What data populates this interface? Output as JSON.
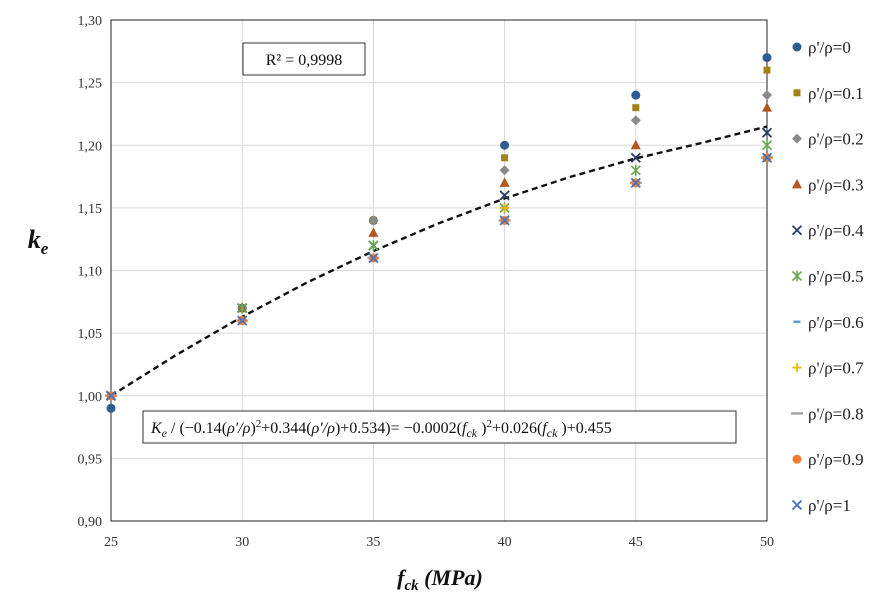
{
  "chart_data": {
    "type": "scatter",
    "xlabel": {
      "main": "f",
      "sub": "ck",
      "unit": " (MPa)"
    },
    "ylabel": {
      "main": "k",
      "sub": "e"
    },
    "xlim": [
      25,
      50
    ],
    "ylim": [
      0.9,
      1.3
    ],
    "xticks": [
      "25",
      "30",
      "35",
      "40",
      "45",
      "50"
    ],
    "yticks": [
      "0,90",
      "0,95",
      "1,00",
      "1,05",
      "1,10",
      "1,15",
      "1,20",
      "1,25",
      "1,30"
    ],
    "grid": true,
    "legend": "right",
    "x": [
      25,
      30,
      35,
      40,
      45,
      50
    ],
    "series": [
      {
        "name": "ρ'/ρ=0",
        "marker": "circle",
        "color": "#2e5d93",
        "values": [
          0.99,
          1.07,
          1.14,
          1.2,
          1.24,
          1.27
        ]
      },
      {
        "name": "ρ'/ρ=0.1",
        "marker": "square",
        "color": "#a08418",
        "values": [
          1.0,
          1.07,
          1.14,
          1.19,
          1.23,
          1.26
        ]
      },
      {
        "name": "ρ'/ρ=0.2",
        "marker": "diamond",
        "color": "#8a8a8a",
        "values": [
          1.0,
          1.07,
          1.14,
          1.18,
          1.22,
          1.24
        ]
      },
      {
        "name": "ρ'/ρ=0.3",
        "marker": "triangle",
        "color": "#b5561f",
        "values": [
          1.0,
          1.07,
          1.13,
          1.17,
          1.2,
          1.23
        ]
      },
      {
        "name": "ρ'/ρ=0.4",
        "marker": "x",
        "color": "#1f3d6b",
        "values": [
          1.0,
          1.07,
          1.12,
          1.16,
          1.19,
          1.21
        ]
      },
      {
        "name": "ρ'/ρ=0.5",
        "marker": "star",
        "color": "#6aa84f",
        "values": [
          1.0,
          1.07,
          1.12,
          1.15,
          1.18,
          1.2
        ]
      },
      {
        "name": "ρ'/ρ=0.6",
        "marker": "dash",
        "color": "#5b9bd5",
        "values": [
          1.0,
          1.06,
          1.11,
          1.15,
          1.17,
          1.19
        ]
      },
      {
        "name": "ρ'/ρ=0.7",
        "marker": "plus",
        "color": "#f1b400",
        "values": [
          1.0,
          1.06,
          1.11,
          1.15,
          1.17,
          1.19
        ]
      },
      {
        "name": "ρ'/ρ=0.8",
        "marker": "bar",
        "color": "#a5a5a5",
        "values": [
          1.0,
          1.06,
          1.11,
          1.14,
          1.17,
          1.19
        ]
      },
      {
        "name": "ρ'/ρ=0.9",
        "marker": "circle",
        "color": "#ed7d31",
        "values": [
          1.0,
          1.06,
          1.11,
          1.14,
          1.17,
          1.19
        ]
      },
      {
        "name": "ρ'/ρ=1",
        "marker": "x",
        "color": "#4472c4",
        "values": [
          1.0,
          1.06,
          1.11,
          1.14,
          1.17,
          1.19
        ]
      }
    ],
    "trendline": {
      "style": "dashed",
      "color": "#111111",
      "x": [
        25,
        27.5,
        30,
        32.5,
        35,
        37.5,
        40,
        42.5,
        45,
        47.5,
        50
      ],
      "values": [
        1.0,
        1.0328,
        1.063,
        1.0907,
        1.1155,
        1.1378,
        1.1575,
        1.1747,
        1.1895,
        1.2018,
        1.215
      ]
    },
    "annotations": {
      "r2": "R² = 0,9998",
      "equation_parts": [
        {
          "t": "K",
          "i": true
        },
        {
          "t": "e",
          "sub": true,
          "i": true
        },
        {
          "t": " / (−0.14("
        },
        {
          "t": "ρ′/ρ",
          "i": true
        },
        {
          "t": ")"
        },
        {
          "t": "2",
          "sup": true
        },
        {
          "t": "+0.344("
        },
        {
          "t": "ρ′/ρ",
          "i": true
        },
        {
          "t": ")+0.534)= −0.0002("
        },
        {
          "t": "f",
          "i": true
        },
        {
          "t": "ck",
          "sub": true,
          "i": true
        },
        {
          "t": " )"
        },
        {
          "t": "2",
          "sup": true
        },
        {
          "t": "+0.026("
        },
        {
          "t": "f",
          "i": true
        },
        {
          "t": "ck",
          "sub": true,
          "i": true
        },
        {
          "t": " )+0.455"
        }
      ]
    }
  }
}
